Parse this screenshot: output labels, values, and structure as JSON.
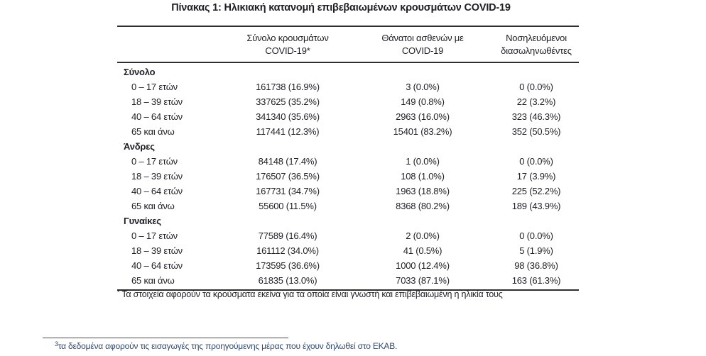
{
  "title": "Πίνακας 1: Ηλικιακή κατανομή επιβεβαιωμένων κρουσμάτων COVID-19",
  "table": {
    "header": {
      "cols": [
        {
          "line1": "Σύνολο κρουσμάτων",
          "line2": "COVID-19*"
        },
        {
          "line1": "Θάνατοι ασθενών με",
          "line2": "COVID-19"
        },
        {
          "line1": "Νοσηλευόμενοι",
          "line2": "διασωληνωθέντες"
        }
      ]
    },
    "sections": [
      {
        "label": "Σύνολο",
        "rows": [
          {
            "label": "0 – 17 ετών",
            "cases": "161738 (16.9%)",
            "deaths": "3 (0.0%)",
            "intubated": "0 (0.0%)"
          },
          {
            "label": "18 – 39 ετών",
            "cases": "337625 (35.2%)",
            "deaths": "149 (0.8%)",
            "intubated": "22 (3.2%)"
          },
          {
            "label": "40 – 64 ετών",
            "cases": "341340 (35.6%)",
            "deaths": "2963 (16.0%)",
            "intubated": "323 (46.3%)"
          },
          {
            "label": "65 και άνω",
            "cases": "117441 (12.3%)",
            "deaths": "15401 (83.2%)",
            "intubated": "352 (50.5%)"
          }
        ]
      },
      {
        "label": "Άνδρες",
        "rows": [
          {
            "label": "0 – 17 ετών",
            "cases": "84148 (17.4%)",
            "deaths": "1 (0.0%)",
            "intubated": "0 (0.0%)"
          },
          {
            "label": "18 – 39 ετών",
            "cases": "176507 (36.5%)",
            "deaths": "108 (1.0%)",
            "intubated": "17 (3.9%)"
          },
          {
            "label": "40 – 64 ετών",
            "cases": "167731 (34.7%)",
            "deaths": "1963 (18.8%)",
            "intubated": "225 (52.2%)"
          },
          {
            "label": "65 και άνω",
            "cases": "55600 (11.5%)",
            "deaths": "8368 (80.2%)",
            "intubated": "189 (43.9%)"
          }
        ]
      },
      {
        "label": "Γυναίκες",
        "rows": [
          {
            "label": "0 – 17 ετών",
            "cases": "77589 (16.4%)",
            "deaths": "2 (0.0%)",
            "intubated": "0 (0.0%)"
          },
          {
            "label": "18 – 39 ετών",
            "cases": "161112 (34.0%)",
            "deaths": "41 (0.5%)",
            "intubated": "5 (1.9%)"
          },
          {
            "label": "40 – 64 ετών",
            "cases": "173595 (36.6%)",
            "deaths": "1000 (12.4%)",
            "intubated": "98 (36.8%)"
          },
          {
            "label": "65 και άνω",
            "cases": "61835 (13.0%)",
            "deaths": "7033 (87.1%)",
            "intubated": "163 (61.3%)"
          }
        ]
      }
    ]
  },
  "footnotes": {
    "table_marker": "*",
    "table_text": "Τα στοιχεία αφορούν τα κρούσματα εκείνα για τα οποία είναι γνωστή και επιβεβαιωμένη η ηλικία τους",
    "page_marker": "3",
    "page_text": "τα δεδομένα αφορούν τις εισαγωγές της προηγούμενης μέρας που έχουν δηλωθεί στο ΕΚΑΒ."
  },
  "colors": {
    "text": "#1e1e24",
    "border": "#2f2f2f",
    "page_footnote_text": "#2e4a74"
  }
}
